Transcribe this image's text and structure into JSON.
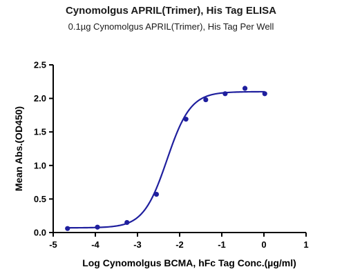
{
  "chart_data": {
    "type": "scatter",
    "title": "Cynomolgus APRIL(Trimer), His Tag ELISA",
    "subtitle": "0.1µg Cynomolgus APRIL(Trimer), His Tag Per Well",
    "xlabel": "Log Cynomolgus BCMA, hFc Tag Conc.(µg/ml)",
    "ylabel": "Mean Abs.(OD450)",
    "xlim": [
      -5,
      1
    ],
    "ylim": [
      0,
      2.5
    ],
    "xticks": [
      "-5",
      "-4",
      "-3",
      "-2",
      "-1",
      "0",
      "1"
    ],
    "yticks": [
      "0.0",
      "0.5",
      "1.0",
      "1.5",
      "2.0",
      "2.5"
    ],
    "grid": false,
    "colors": {
      "series": "#1f1f9e",
      "axis": "#000000"
    },
    "series": [
      {
        "points": [
          {
            "x": -4.66,
            "y": 0.06
          },
          {
            "x": -3.95,
            "y": 0.08
          },
          {
            "x": -3.25,
            "y": 0.15
          },
          {
            "x": -2.55,
            "y": 0.57
          },
          {
            "x": -1.85,
            "y": 1.69
          },
          {
            "x": -1.38,
            "y": 1.98
          },
          {
            "x": -0.92,
            "y": 2.07
          },
          {
            "x": -0.45,
            "y": 2.15
          },
          {
            "x": 0.02,
            "y": 2.07
          }
        ],
        "fit": {
          "model": "4PL",
          "bottom": 0.07,
          "top": 2.1,
          "logEC50": -2.3,
          "hill": 1.55,
          "x_range": [
            -4.66,
            0.02
          ]
        }
      }
    ]
  }
}
